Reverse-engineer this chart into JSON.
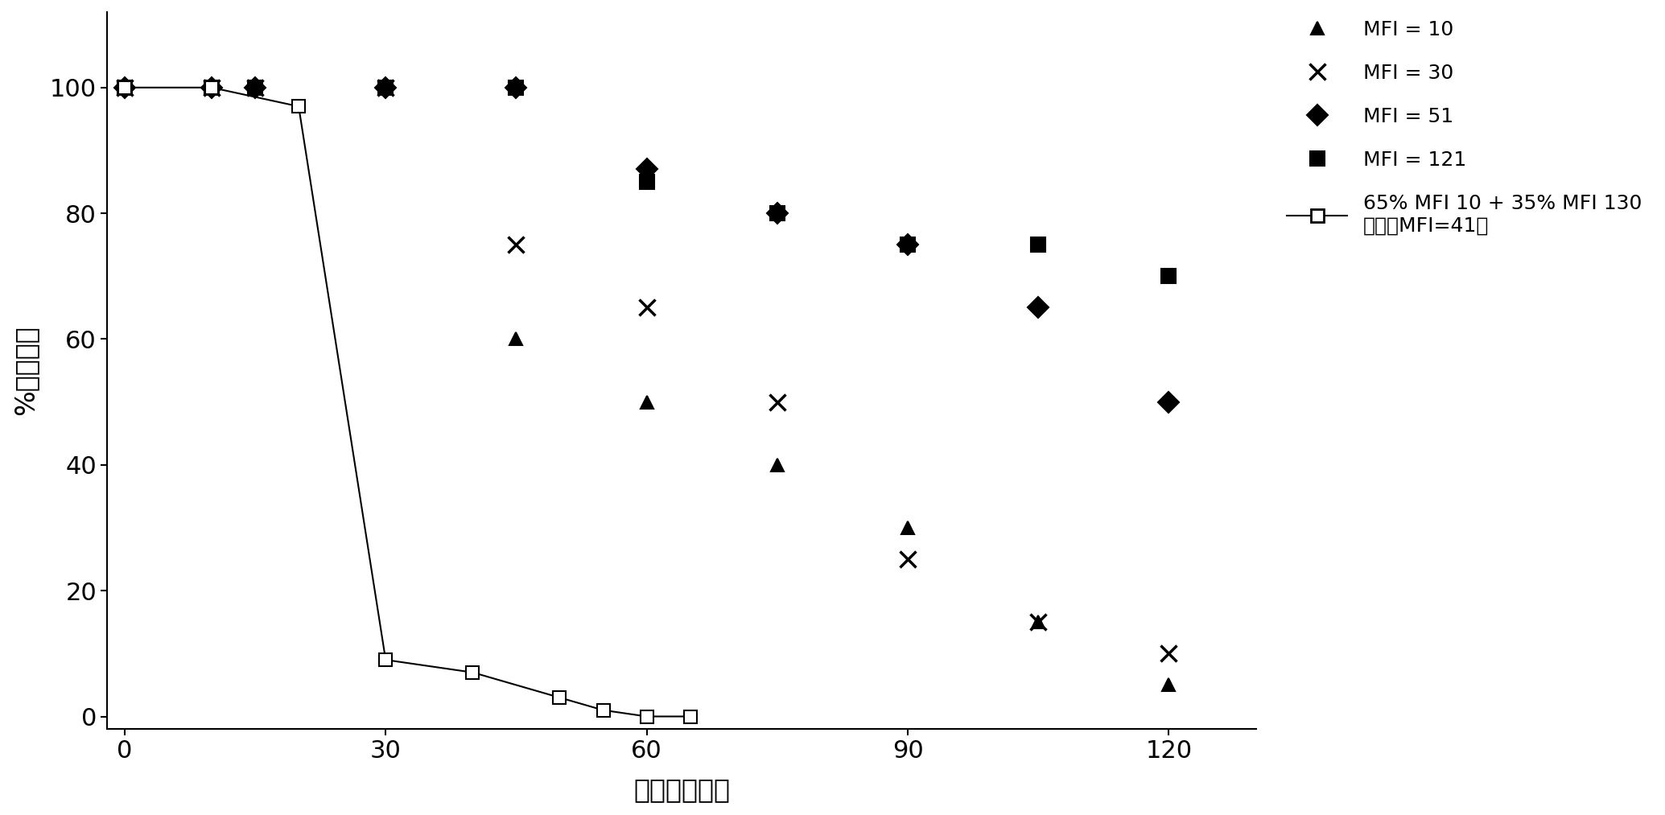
{
  "ylabel": "%熔体破裂",
  "xlabel": "时间（分钟）",
  "xlim": [
    -2,
    130
  ],
  "ylim": [
    -2,
    112
  ],
  "xticks": [
    0,
    30,
    60,
    90,
    120
  ],
  "yticks": [
    0,
    20,
    40,
    60,
    80,
    100
  ],
  "background_color": "#ffffff",
  "series": [
    {
      "label": "MFI = 10",
      "marker": "^",
      "color": "#000000",
      "linestyle": "none",
      "markersize": 12,
      "x": [
        0,
        10,
        15,
        30,
        45,
        60,
        75,
        90,
        105,
        120
      ],
      "y": [
        100,
        100,
        100,
        100,
        60,
        50,
        40,
        30,
        15,
        5
      ]
    },
    {
      "label": "MFI = 30",
      "marker": "x",
      "color": "#000000",
      "linestyle": "none",
      "markersize": 14,
      "markeredgewidth": 2.5,
      "x": [
        0,
        10,
        15,
        30,
        45,
        60,
        75,
        90,
        105,
        120
      ],
      "y": [
        100,
        100,
        100,
        100,
        75,
        65,
        50,
        25,
        15,
        10
      ]
    },
    {
      "label": "MFI = 51",
      "marker": "D",
      "color": "#000000",
      "linestyle": "none",
      "markersize": 13,
      "x": [
        0,
        10,
        15,
        30,
        45,
        60,
        75,
        90,
        105,
        120
      ],
      "y": [
        100,
        100,
        100,
        100,
        100,
        87,
        80,
        75,
        65,
        50
      ]
    },
    {
      "label": "MFI = 121",
      "marker": "s",
      "color": "#000000",
      "linestyle": "none",
      "markersize": 13,
      "x": [
        0,
        10,
        15,
        30,
        45,
        60,
        75,
        90,
        105,
        120
      ],
      "y": [
        100,
        100,
        100,
        100,
        100,
        85,
        80,
        75,
        75,
        70
      ]
    },
    {
      "label": "65% MFI 10 + 35% MFI 130\n（掺混MFI=41）",
      "marker": "s",
      "markerfacecolor": "white",
      "markeredgecolor": "#000000",
      "color": "#000000",
      "linestyle": "-",
      "linewidth": 1.5,
      "markersize": 12,
      "x": [
        0,
        10,
        20,
        30,
        40,
        50,
        55,
        60,
        65
      ],
      "y": [
        100,
        100,
        97,
        9,
        7,
        3,
        1,
        0,
        0
      ]
    }
  ],
  "legend_entries": [
    {
      "label": "MFI = 10",
      "marker": "^",
      "mfc": "#000000",
      "mec": "#000000",
      "ls": "None",
      "lw": 0,
      "ms": 12,
      "mew": 1.5
    },
    {
      "label": "MFI = 30",
      "marker": "x",
      "mfc": "#000000",
      "mec": "#000000",
      "ls": "None",
      "lw": 0,
      "ms": 14,
      "mew": 2.5
    },
    {
      "label": "MFI = 51",
      "marker": "D",
      "mfc": "#000000",
      "mec": "#000000",
      "ls": "None",
      "lw": 0,
      "ms": 13,
      "mew": 1.5
    },
    {
      "label": "MFI = 121",
      "marker": "s",
      "mfc": "#000000",
      "mec": "#000000",
      "ls": "None",
      "lw": 0,
      "ms": 13,
      "mew": 1.5
    },
    {
      "label": "65% MFI 10 + 35% MFI 130\n（掺混MFI=41）",
      "marker": "s",
      "mfc": "white",
      "mec": "#000000",
      "ls": "-",
      "lw": 1.5,
      "ms": 12,
      "mew": 2.0
    }
  ]
}
